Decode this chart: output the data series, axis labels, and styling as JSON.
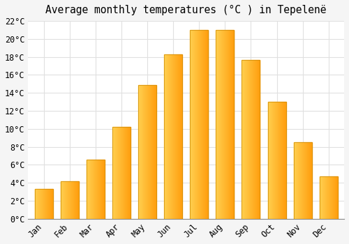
{
  "title": "Average monthly temperatures (°C ) in Tepelenë",
  "months": [
    "Jan",
    "Feb",
    "Mar",
    "Apr",
    "May",
    "Jun",
    "Jul",
    "Aug",
    "Sep",
    "Oct",
    "Nov",
    "Dec"
  ],
  "values": [
    3.3,
    4.2,
    6.6,
    10.2,
    14.9,
    18.3,
    21.0,
    21.0,
    17.7,
    13.0,
    8.5,
    4.7
  ],
  "bar_color_left": "#FFD050",
  "bar_color_right": "#FFA010",
  "bar_edge_color": "#CC8800",
  "ylim": [
    0,
    22
  ],
  "yticks": [
    0,
    2,
    4,
    6,
    8,
    10,
    12,
    14,
    16,
    18,
    20,
    22
  ],
  "background_color": "#f5f5f5",
  "plot_bg_color": "#ffffff",
  "grid_color": "#e0e0e0",
  "title_fontsize": 10.5,
  "tick_fontsize": 8.5,
  "font_family": "monospace"
}
